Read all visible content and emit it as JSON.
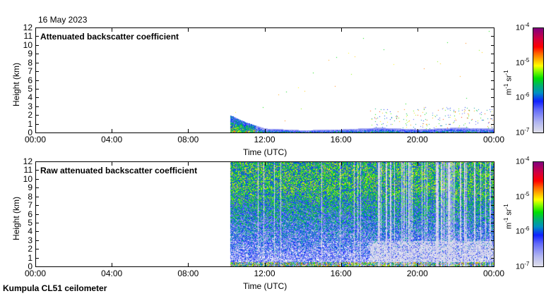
{
  "date": "16 May 2023",
  "footer": "Kumpula CL51 ceilometer",
  "colors": {
    "axis": "#000000",
    "background": "#ffffff"
  },
  "chart_data": [
    {
      "type": "heatmap",
      "title": "Attenuated backscatter coefficient",
      "xlabel": "Time (UTC)",
      "ylabel": "Height (km)",
      "xlim": [
        0,
        24
      ],
      "ylim": [
        0,
        12
      ],
      "xticks": [
        "00:00",
        "04:00",
        "08:00",
        "12:00",
        "16:00",
        "20:00",
        "00:00"
      ],
      "yticks": [
        "0",
        "1",
        "2",
        "3",
        "4",
        "5",
        "6",
        "7",
        "8",
        "9",
        "10",
        "11",
        "12"
      ],
      "colorbar": {
        "label_base": "m",
        "label_exp1": "-1",
        "label_mid": " sr",
        "label_exp2": "-1",
        "scale": "log",
        "range": [
          1e-07,
          0.0001
        ],
        "ticks": [
          {
            "base": "10",
            "exp": "-4"
          },
          {
            "base": "10",
            "exp": "-5"
          },
          {
            "base": "10",
            "exp": "-6"
          },
          {
            "base": "10",
            "exp": "-7"
          }
        ]
      },
      "data_start_hour": 10.2,
      "boundary_layer_top_km": [
        [
          10.2,
          2.0
        ],
        [
          11,
          1.2
        ],
        [
          12,
          0.5
        ],
        [
          14,
          0.3
        ],
        [
          16,
          0.4
        ],
        [
          18,
          0.6
        ],
        [
          20,
          0.4
        ],
        [
          22,
          0.6
        ],
        [
          24,
          0.5
        ]
      ],
      "mode": "attenuated"
    },
    {
      "type": "heatmap",
      "title": "Raw attenuated backscatter coefficient",
      "xlabel": "Time (UTC)",
      "ylabel": "Height (km)",
      "xlim": [
        0,
        24
      ],
      "ylim": [
        0,
        12
      ],
      "xticks": [
        "00:00",
        "04:00",
        "08:00",
        "12:00",
        "16:00",
        "20:00",
        "00:00"
      ],
      "yticks": [
        "0",
        "1",
        "2",
        "3",
        "4",
        "5",
        "6",
        "7",
        "8",
        "9",
        "10",
        "11",
        "12"
      ],
      "colorbar": {
        "label_base": "m",
        "label_exp1": "-1",
        "label_mid": " sr",
        "label_exp2": "-1",
        "scale": "log",
        "range": [
          1e-07,
          0.0001
        ],
        "ticks": [
          {
            "base": "10",
            "exp": "-4"
          },
          {
            "base": "10",
            "exp": "-5"
          },
          {
            "base": "10",
            "exp": "-6"
          },
          {
            "base": "10",
            "exp": "-7"
          }
        ]
      },
      "data_start_hour": 10.2,
      "mode": "raw"
    }
  ]
}
